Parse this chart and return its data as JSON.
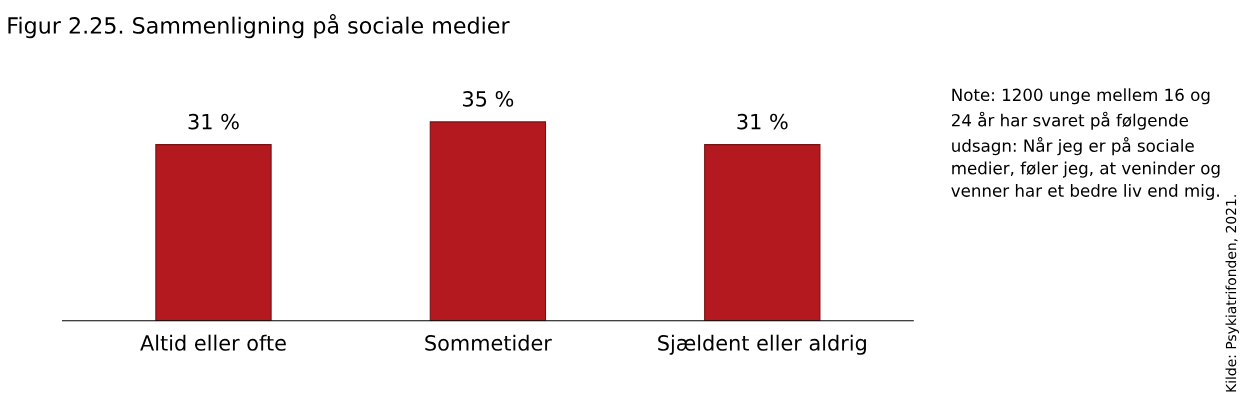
{
  "chart_data": {
    "type": "bar",
    "title": "Figur 2.25. Sammenligning på sociale medier",
    "categories": [
      "Altid eller ofte",
      "Sommetider",
      "Sjældent eller aldrig"
    ],
    "values": [
      31,
      35,
      31
    ],
    "color": "#b3191e",
    "data_labels": true,
    "value_labels": [
      "31 %",
      "35 %",
      "31 %"
    ],
    "annotations": [
      "Note: 1200 unge mellem 16 og 24 år har svaret på følgende udsagn: Når jeg er på sociale medier, føler jeg, at veninder og venner har et bedre liv end mig.",
      "Kilde: Psykiatrifonden, 2021."
    ]
  }
}
